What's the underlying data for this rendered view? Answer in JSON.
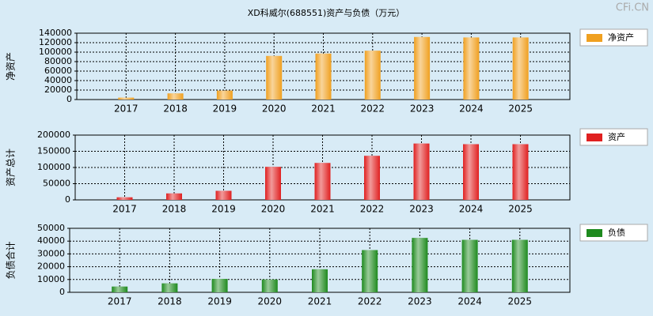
{
  "title": "XD科威尔(688551)资产与负债（万元）",
  "watermark": "CFi.CN",
  "chart_data": [
    {
      "type": "bar",
      "ylabel": "净资产",
      "categories": [
        "2017",
        "2018",
        "2019",
        "2020",
        "2021",
        "2022",
        "2023",
        "2024",
        "2025"
      ],
      "series": [
        {
          "name": "净资产",
          "color": "#f0a020",
          "values": [
            4000,
            13000,
            19000,
            92000,
            97000,
            103000,
            132000,
            131000,
            131000
          ]
        }
      ],
      "ylim": [
        0,
        140000
      ],
      "yticks": [
        0,
        20000,
        40000,
        60000,
        80000,
        100000,
        120000,
        140000
      ],
      "grid": true
    },
    {
      "type": "bar",
      "ylabel": "资产总计",
      "categories": [
        "2017",
        "2018",
        "2019",
        "2020",
        "2021",
        "2022",
        "2023",
        "2024",
        "2025"
      ],
      "series": [
        {
          "name": "资产",
          "color": "#e02020",
          "values": [
            8000,
            20000,
            28000,
            102000,
            114000,
            136000,
            174000,
            172000,
            172000
          ]
        }
      ],
      "ylim": [
        0,
        200000
      ],
      "yticks": [
        0,
        50000,
        100000,
        150000,
        200000
      ],
      "grid": true
    },
    {
      "type": "bar",
      "ylabel": "负债合计",
      "categories": [
        "2017",
        "2018",
        "2019",
        "2020",
        "2021",
        "2022",
        "2023",
        "2024",
        "2025"
      ],
      "series": [
        {
          "name": "负债",
          "color": "#1e8a1e",
          "values": [
            4500,
            7000,
            10500,
            10000,
            18000,
            33000,
            42500,
            41000,
            41000
          ]
        }
      ],
      "ylim": [
        0,
        50000
      ],
      "yticks": [
        0,
        10000,
        20000,
        30000,
        40000,
        50000
      ],
      "grid": true
    }
  ]
}
